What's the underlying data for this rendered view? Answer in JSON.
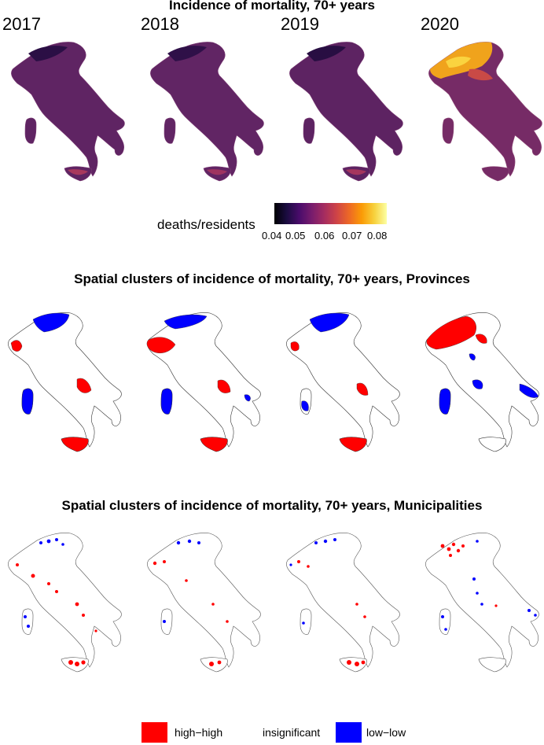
{
  "titles": {
    "top": "Incidence of mortality, 70+ years",
    "middle": "Spatial clusters of incidence of mortality, 70+ years, Provinces",
    "bottom": "Spatial clusters of incidence of mortality, 70+ years, Municipalities"
  },
  "years": [
    "2017",
    "2018",
    "2019",
    "2020"
  ],
  "colorbar": {
    "label": "deaths/residents",
    "ticks": [
      "0.04",
      "0.05",
      "0.06",
      "0.07",
      "0.08"
    ],
    "palette": "inferno",
    "range": [
      0.04,
      0.08
    ]
  },
  "cluster_legend": {
    "items": [
      {
        "label": "high−high",
        "color": "#ff0000"
      },
      {
        "label": "insignificant",
        "color": "#ffffff"
      },
      {
        "label": "low−low",
        "color": "#0000ff"
      }
    ]
  },
  "colors": {
    "high_high": "#ff0000",
    "low_low": "#0000ff",
    "choropleth_base": "#6a2a63",
    "choropleth_2020_hot": "#f5b700"
  }
}
